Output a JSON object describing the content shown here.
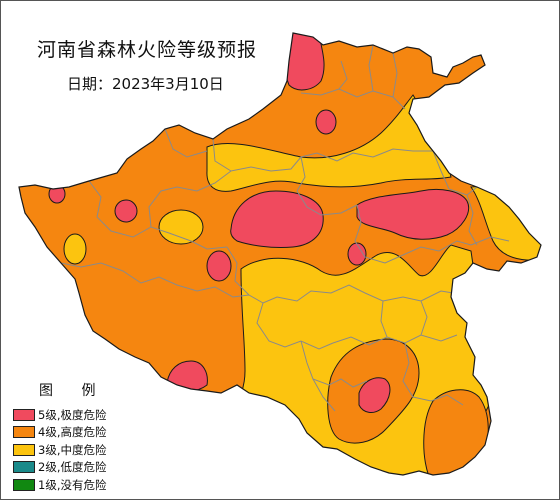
{
  "title": "河南省森林火险等级预报",
  "date_label": "日期：2023年3月10日",
  "legend": {
    "title": "图 例",
    "items": [
      {
        "label": "5级,极度危险",
        "color": "#f04a5e"
      },
      {
        "label": "4级,高度危险",
        "color": "#f58610"
      },
      {
        "label": "3级,中度危险",
        "color": "#fcc40f"
      },
      {
        "label": "2级,低度危险",
        "color": "#1a8a8a"
      },
      {
        "label": "1级,没有危险",
        "color": "#118811"
      }
    ]
  },
  "colors": {
    "level5": "#f04a5e",
    "level4": "#f58610",
    "level3": "#fcc40f",
    "boundary": "#8a8a8a",
    "contour": "#1a1a1a"
  }
}
